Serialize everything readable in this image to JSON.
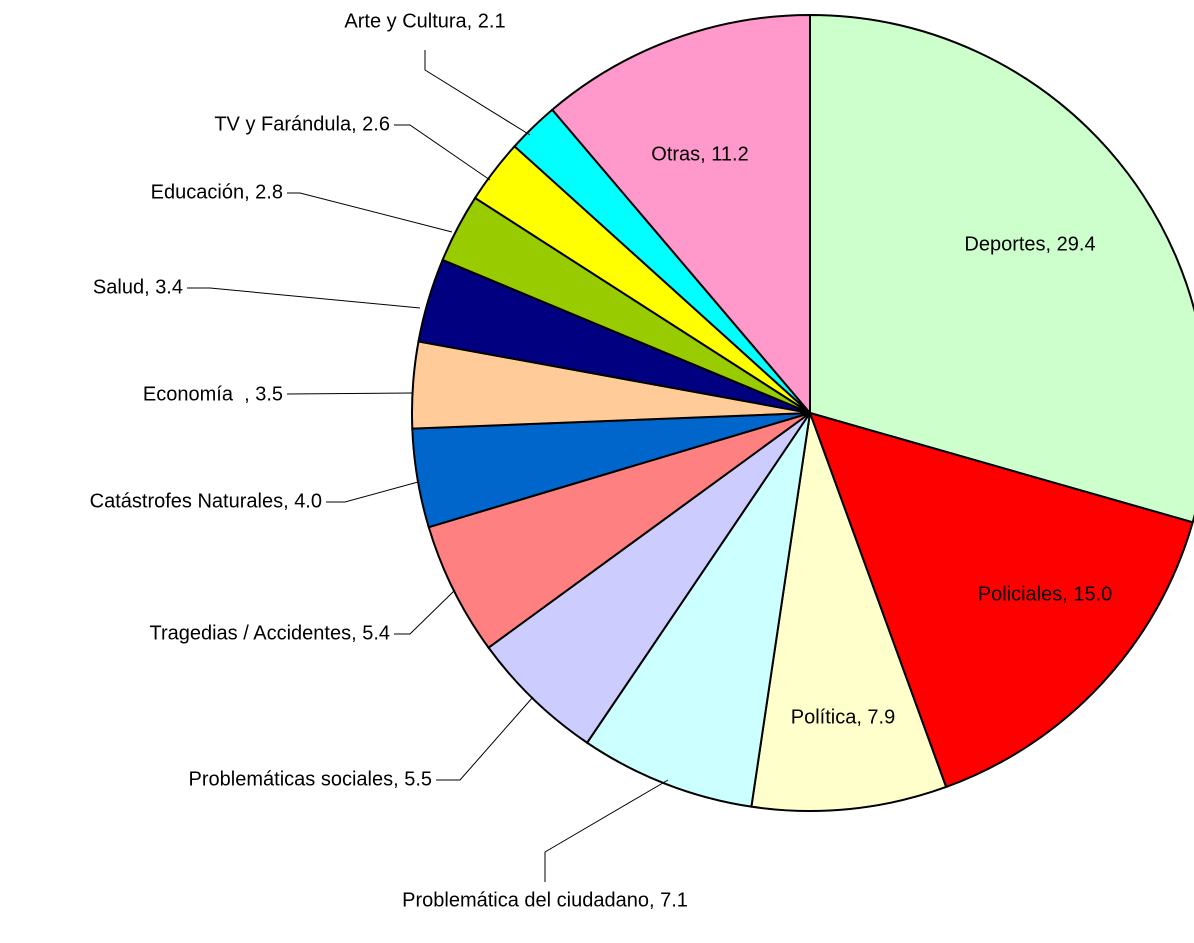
{
  "chart_data": {
    "type": "pie",
    "values": [
      29.4,
      15.0,
      7.9,
      7.1,
      5.5,
      5.4,
      4.0,
      3.5,
      3.4,
      2.8,
      2.6,
      2.1,
      11.2
    ],
    "value_labels": [
      "Deportes, 29.4",
      "Policiales, 15.0",
      "Política, 7.9",
      "Problemática del ciudadano, 7.1",
      "Problemáticas sociales, 5.5",
      "Tragedias / Accidentes, 5.4",
      "Catástrofes Naturales, 4.0",
      "Economía  , 3.5",
      "Salud, 3.4",
      "Educación, 2.8",
      "TV y Farándula, 2.6",
      "Arte y Cultura, 2.1",
      "Otras, 11.2"
    ],
    "colors": [
      "#ccffcc",
      "#ff0000",
      "#ffffcc",
      "#ccffff",
      "#ccccff",
      "#ff8080",
      "#0066cc",
      "#ffcc99",
      "#000080",
      "#99cc00",
      "#ffff00",
      "#00ffff",
      "#ff99cc"
    ]
  }
}
